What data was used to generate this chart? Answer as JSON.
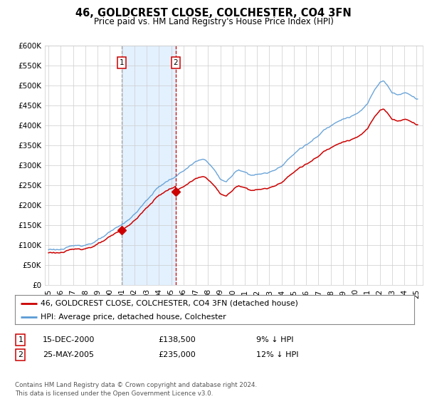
{
  "title": "46, GOLDCREST CLOSE, COLCHESTER, CO4 3FN",
  "subtitle": "Price paid vs. HM Land Registry's House Price Index (HPI)",
  "footer": "Contains HM Land Registry data © Crown copyright and database right 2024.\nThis data is licensed under the Open Government Licence v3.0.",
  "legend_line1": "46, GOLDCREST CLOSE, COLCHESTER, CO4 3FN (detached house)",
  "legend_line2": "HPI: Average price, detached house, Colchester",
  "table_row1": [
    "1",
    "15-DEC-2000",
    "£138,500",
    "9% ↓ HPI"
  ],
  "table_row2": [
    "2",
    "25-MAY-2005",
    "£235,000",
    "12% ↓ HPI"
  ],
  "hpi_color": "#5b9bd5",
  "price_color": "#cc0000",
  "bg_color": "#ffffff",
  "plot_bg": "#ffffff",
  "grid_color": "#cccccc",
  "shade_color": "#ddeeff",
  "vline1_color": "#aaaaaa",
  "vline2_color": "#cc0000",
  "sale1_year": 2000,
  "sale1_month": 12,
  "sale1_price": 138500,
  "sale2_year": 2005,
  "sale2_month": 5,
  "sale2_price": 235000,
  "ylim": [
    0,
    600000
  ],
  "yticks": [
    0,
    50000,
    100000,
    150000,
    200000,
    250000,
    300000,
    350000,
    400000,
    450000,
    500000,
    550000,
    600000
  ],
  "x_start": 1994.7,
  "x_end": 2025.5,
  "xtick_start": 1995,
  "xtick_end": 2025
}
